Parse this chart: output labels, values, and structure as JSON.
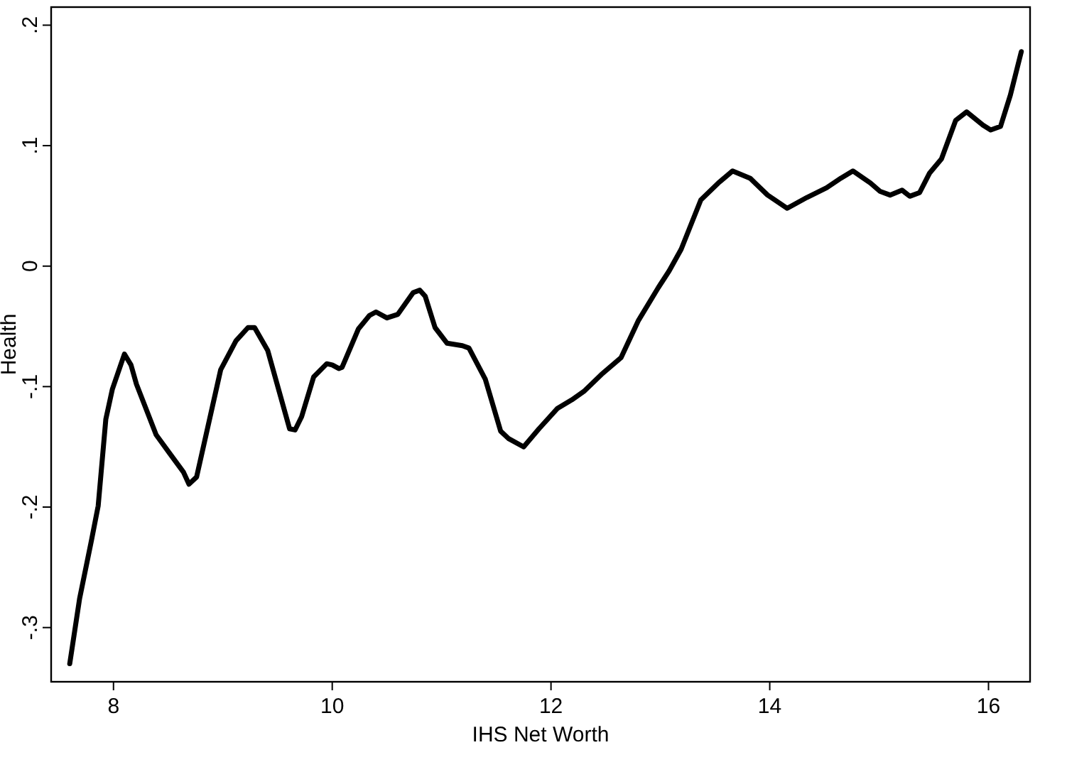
{
  "chart_data": {
    "type": "line",
    "xlabel": "IHS Net Worth",
    "ylabel": "Health",
    "xlim": [
      7.43,
      16.38
    ],
    "ylim": [
      -0.345,
      0.215
    ],
    "xticks": [
      8,
      10,
      12,
      14,
      16
    ],
    "yticks": [
      {
        "value": -0.3,
        "label": "-.3"
      },
      {
        "value": -0.2,
        "label": "-.2"
      },
      {
        "value": -0.1,
        "label": "-.1"
      },
      0,
      {
        "value": 0.1,
        "label": ".1"
      },
      {
        "value": 0.2,
        "label": ".2"
      }
    ],
    "grid": false,
    "line_style": "solid",
    "marker": "none",
    "series": [
      {
        "color": "#000000",
        "x": [
          7.6,
          7.69,
          7.8,
          7.86,
          7.93,
          7.99,
          8.1,
          8.16,
          8.21,
          8.39,
          8.51,
          8.64,
          8.69,
          8.76,
          8.98,
          9.12,
          9.23,
          9.29,
          9.41,
          9.61,
          9.66,
          9.72,
          9.83,
          9.95,
          10.0,
          10.06,
          10.09,
          10.24,
          10.34,
          10.4,
          10.5,
          10.6,
          10.74,
          10.8,
          10.85,
          10.94,
          11.05,
          11.19,
          11.25,
          11.4,
          11.54,
          11.61,
          11.75,
          11.89,
          12.06,
          12.19,
          12.3,
          12.46,
          12.64,
          12.8,
          12.98,
          13.08,
          13.19,
          13.37,
          13.53,
          13.66,
          13.82,
          13.98,
          14.16,
          14.34,
          14.52,
          14.65,
          14.76,
          14.92,
          15.01,
          15.1,
          15.21,
          15.28,
          15.37,
          15.46,
          15.57,
          15.7,
          15.8,
          15.95,
          16.02,
          16.11,
          16.2,
          16.3
        ],
        "values": [
          -0.33,
          -0.276,
          -0.227,
          -0.199,
          -0.127,
          -0.102,
          -0.073,
          -0.082,
          -0.098,
          -0.14,
          -0.155,
          -0.171,
          -0.181,
          -0.175,
          -0.086,
          -0.062,
          -0.051,
          -0.051,
          -0.07,
          -0.135,
          -0.136,
          -0.125,
          -0.092,
          -0.081,
          -0.082,
          -0.085,
          -0.084,
          -0.052,
          -0.041,
          -0.038,
          -0.043,
          -0.04,
          -0.022,
          -0.02,
          -0.025,
          -0.051,
          -0.064,
          -0.066,
          -0.068,
          -0.094,
          -0.137,
          -0.143,
          -0.15,
          -0.135,
          -0.118,
          -0.111,
          -0.104,
          -0.09,
          -0.076,
          -0.045,
          -0.018,
          -0.004,
          0.014,
          0.055,
          0.069,
          0.079,
          0.073,
          0.059,
          0.048,
          0.057,
          0.065,
          0.073,
          0.079,
          0.069,
          0.062,
          0.059,
          0.063,
          0.058,
          0.061,
          0.077,
          0.089,
          0.121,
          0.128,
          0.117,
          0.113,
          0.116,
          0.142,
          0.178
        ]
      }
    ]
  }
}
